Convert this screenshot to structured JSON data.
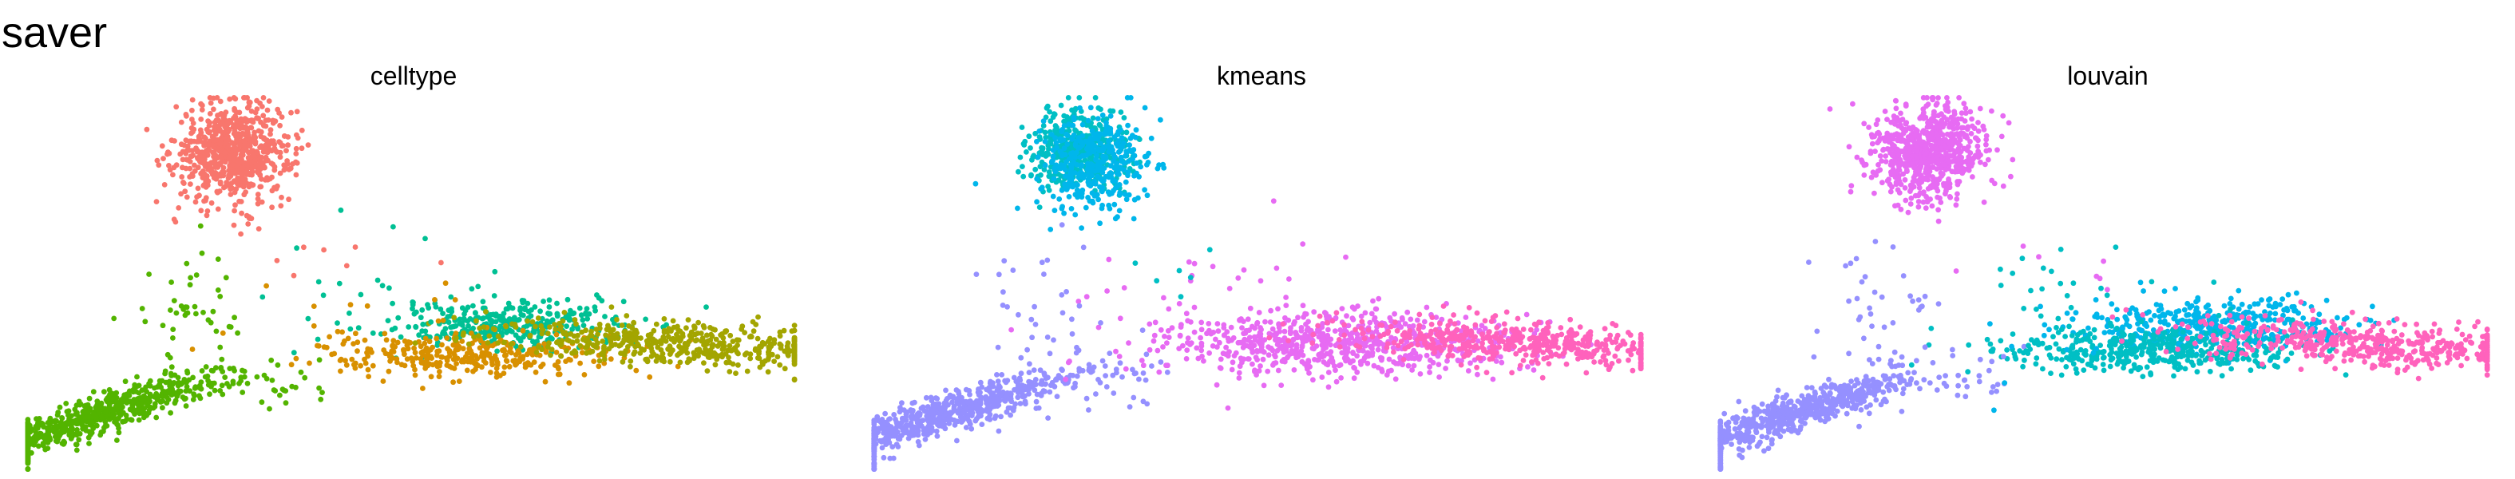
{
  "figure": {
    "title": "saver"
  },
  "legend_colors": {
    "red": "#F8766D",
    "green": "#53B400",
    "teal": "#00C094",
    "orange": "#D89000",
    "olive": "#A3A500",
    "cyan": "#00B6EB",
    "lavender": "#9590FF",
    "magenta": "#E76BF3",
    "pink": "#FF62BC",
    "turquoise": "#00BFC4"
  },
  "chart_data": [
    {
      "type": "scatter",
      "title": "celltype",
      "xlabel": "",
      "ylabel": "",
      "grid": false,
      "legend": "none",
      "xlim": [
        0,
        100
      ],
      "ylim": [
        0,
        100
      ],
      "clusters": [
        {
          "color": "red",
          "center": [
            27,
            85
          ],
          "spread": [
            3.8,
            6.5
          ],
          "slope": 0,
          "n": 720
        },
        {
          "color": "green",
          "center": [
            9.5,
            15
          ],
          "spread": [
            9,
            2.6
          ],
          "slope": 0.62,
          "n": 650
        },
        {
          "color": "teal",
          "center": [
            63,
            39
          ],
          "spread": [
            8,
            3.3
          ],
          "slope": 0,
          "n": 330
        },
        {
          "color": "orange",
          "center": [
            57,
            31
          ],
          "spread": [
            9.5,
            2.8
          ],
          "slope": 0,
          "n": 330
        },
        {
          "color": "olive",
          "center": [
            84,
            34
          ],
          "spread": [
            12,
            2.8
          ],
          "slope": -0.12,
          "n": 500
        }
      ],
      "scattered": [
        {
          "color": "green",
          "center": [
            22,
            45
          ],
          "spread": [
            4,
            12
          ],
          "slope": -0.3,
          "n": 45
        },
        {
          "color": "green",
          "center": [
            34,
            24
          ],
          "spread": [
            3,
            4
          ],
          "slope": 0.6,
          "n": 20
        },
        {
          "color": "teal",
          "center": [
            48,
            48
          ],
          "spread": [
            9,
            8
          ],
          "slope": 0,
          "n": 25
        },
        {
          "color": "orange",
          "center": [
            45,
            38
          ],
          "spread": [
            8,
            7
          ],
          "slope": 0,
          "n": 15
        },
        {
          "color": "red",
          "center": [
            45,
            56
          ],
          "spread": [
            6,
            4
          ],
          "slope": 0,
          "n": 7
        }
      ]
    },
    {
      "type": "scatter",
      "title": "kmeans",
      "xlabel": "",
      "ylabel": "",
      "grid": false,
      "legend": "none",
      "xlim": [
        0,
        100
      ],
      "ylim": [
        0,
        100
      ],
      "clusters": [
        {
          "color": "turquoise",
          "center": [
            27,
            85
          ],
          "spread": [
            3.2,
            5.5
          ],
          "slope": 0,
          "n": 420
        },
        {
          "color": "cyan",
          "center": [
            29,
            82
          ],
          "spread": [
            3.5,
            6
          ],
          "slope": 0,
          "n": 360
        },
        {
          "color": "lavender",
          "center": [
            9.5,
            15
          ],
          "spread": [
            9,
            2.6
          ],
          "slope": 0.62,
          "n": 680
        },
        {
          "color": "magenta",
          "center": [
            60,
            34
          ],
          "spread": [
            12,
            4.5
          ],
          "slope": 0,
          "n": 700
        },
        {
          "color": "pink",
          "center": [
            84,
            34
          ],
          "spread": [
            12,
            2.8
          ],
          "slope": -0.12,
          "n": 480
        }
      ],
      "scattered": [
        {
          "color": "lavender",
          "center": [
            22,
            42
          ],
          "spread": [
            4,
            12
          ],
          "slope": -0.3,
          "n": 40
        },
        {
          "color": "lavender",
          "center": [
            34,
            24
          ],
          "spread": [
            3,
            4
          ],
          "slope": 0.6,
          "n": 18
        },
        {
          "color": "magenta",
          "center": [
            45,
            44
          ],
          "spread": [
            9,
            10
          ],
          "slope": 0,
          "n": 35
        },
        {
          "color": "turquoise",
          "center": [
            40,
            52
          ],
          "spread": [
            4,
            4
          ],
          "slope": 0,
          "n": 6
        }
      ]
    },
    {
      "type": "scatter",
      "title": "louvain",
      "xlabel": "",
      "ylabel": "",
      "grid": false,
      "legend": "none",
      "xlim": [
        0,
        100
      ],
      "ylim": [
        0,
        100
      ],
      "clusters": [
        {
          "color": "magenta",
          "center": [
            27,
            85
          ],
          "spread": [
            3.8,
            6.5
          ],
          "slope": 0,
          "n": 720
        },
        {
          "color": "lavender",
          "center": [
            9.5,
            15
          ],
          "spread": [
            9,
            2.6
          ],
          "slope": 0.62,
          "n": 660
        },
        {
          "color": "cyan",
          "center": [
            64,
            39
          ],
          "spread": [
            8,
            3.5
          ],
          "slope": 0,
          "n": 420
        },
        {
          "color": "turquoise",
          "center": [
            56,
            32
          ],
          "spread": [
            9.5,
            3.2
          ],
          "slope": 0,
          "n": 420
        },
        {
          "color": "pink",
          "center": [
            84,
            34
          ],
          "spread": [
            12,
            2.8
          ],
          "slope": -0.12,
          "n": 480
        }
      ],
      "scattered": [
        {
          "color": "lavender",
          "center": [
            22,
            42
          ],
          "spread": [
            4,
            12
          ],
          "slope": -0.3,
          "n": 40
        },
        {
          "color": "lavender",
          "center": [
            34,
            24
          ],
          "spread": [
            3,
            4
          ],
          "slope": 0.6,
          "n": 18
        },
        {
          "color": "turquoise",
          "center": [
            46,
            44
          ],
          "spread": [
            8,
            9
          ],
          "slope": 0,
          "n": 30
        },
        {
          "color": "cyan",
          "center": [
            44,
            30
          ],
          "spread": [
            5,
            5
          ],
          "slope": 0,
          "n": 8
        },
        {
          "color": "magenta",
          "center": [
            45,
            56
          ],
          "spread": [
            6,
            4
          ],
          "slope": 0,
          "n": 7
        }
      ]
    }
  ]
}
